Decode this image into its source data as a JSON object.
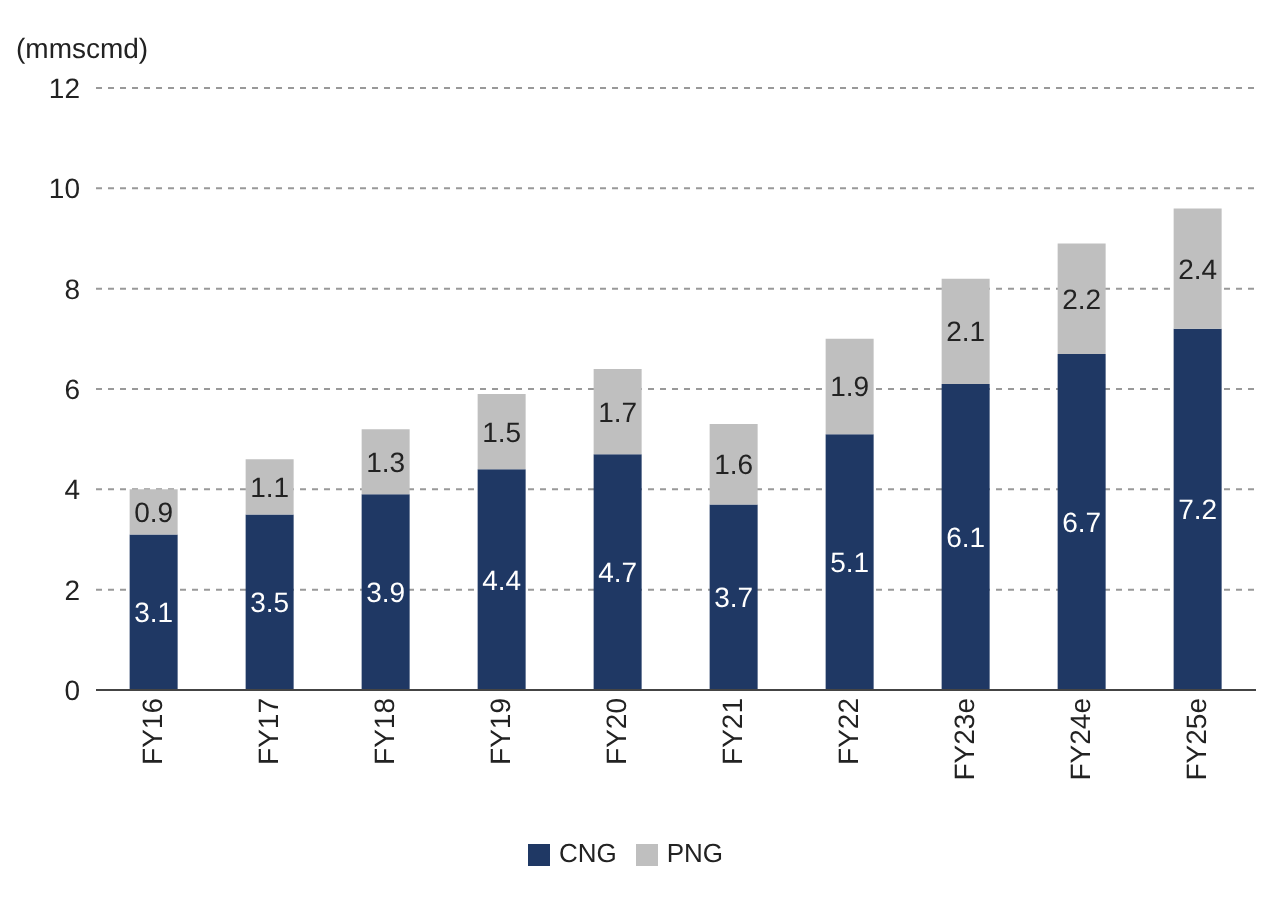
{
  "chart_data": {
    "type": "bar",
    "stacked": true,
    "ylabel": "(mmscmd)",
    "categories": [
      "FY16",
      "FY17",
      "FY18",
      "FY19",
      "FY20",
      "FY21",
      "FY22",
      "FY23e",
      "FY24e",
      "FY25e"
    ],
    "series": [
      {
        "name": "CNG",
        "color": "#1f3864",
        "values": [
          3.1,
          3.5,
          3.9,
          4.4,
          4.7,
          3.7,
          5.1,
          6.1,
          6.7,
          7.2
        ]
      },
      {
        "name": "PNG",
        "color": "#bfbfbf",
        "values": [
          0.9,
          1.1,
          1.3,
          1.5,
          1.7,
          1.6,
          1.9,
          2.1,
          2.2,
          2.4
        ]
      }
    ],
    "ylim": [
      0,
      12
    ],
    "yticks": [
      0,
      2,
      4,
      6,
      8,
      10,
      12
    ],
    "grid": "y",
    "legend": "bottom",
    "data_labels": true
  }
}
